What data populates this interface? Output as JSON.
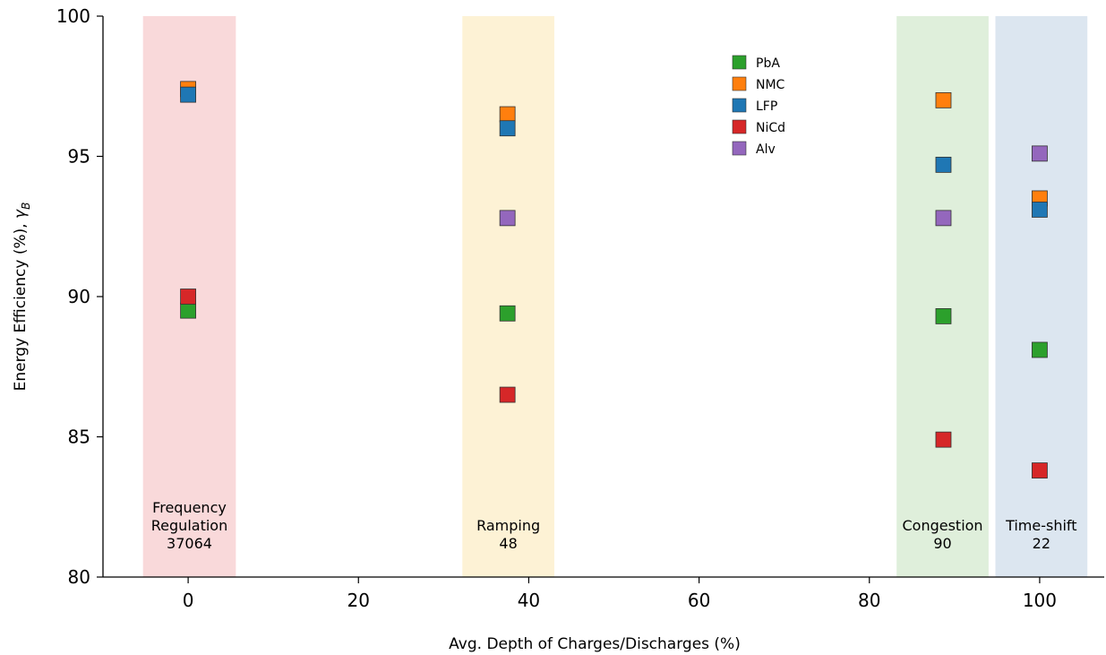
{
  "chart_data": {
    "type": "scatter",
    "xlabel": "Avg. Depth of Charges/Discharges (%)",
    "ylabel": "Energy Efficiency (%), ",
    "ylabel_symbol": "γ",
    "ylabel_subscript": "B",
    "xlim": [
      -10,
      108
    ],
    "ylim": [
      80,
      100
    ],
    "xticks": [
      0,
      20,
      40,
      60,
      80,
      100
    ],
    "yticks": [
      80,
      85,
      90,
      95,
      100
    ],
    "grid": false,
    "legend_position": "top-center",
    "bands": [
      {
        "x_min": -5.3,
        "x_max": 5.6,
        "color": "#f9d9da",
        "label_lines": [
          "Frequency",
          "Regulation",
          "37064"
        ]
      },
      {
        "x_min": 32.2,
        "x_max": 43.0,
        "color": "#fdf2d5",
        "label_lines": [
          "Ramping",
          "48"
        ]
      },
      {
        "x_min": 83.2,
        "x_max": 94.0,
        "color": "#dfefdb",
        "label_lines": [
          "Congestion",
          "90"
        ]
      },
      {
        "x_min": 94.8,
        "x_max": 105.6,
        "color": "#dce6f0",
        "label_lines": [
          "Time-shift",
          "22"
        ]
      }
    ],
    "series": [
      {
        "name": "PbA",
        "color": "#2ca02c",
        "points": [
          [
            0,
            89.5
          ],
          [
            37.5,
            89.4
          ],
          [
            88.7,
            89.3
          ],
          [
            100,
            88.1
          ]
        ]
      },
      {
        "name": "NMC",
        "color": "#ff7f0e",
        "points": [
          [
            0,
            97.4
          ],
          [
            37.5,
            96.5
          ],
          [
            88.7,
            97.0
          ],
          [
            100,
            93.5
          ]
        ]
      },
      {
        "name": "LFP",
        "color": "#1f77b4",
        "points": [
          [
            0,
            97.2
          ],
          [
            37.5,
            96.0
          ],
          [
            88.7,
            94.7
          ],
          [
            100,
            93.1
          ]
        ]
      },
      {
        "name": "NiCd",
        "color": "#d62728",
        "points": [
          [
            0,
            90.0
          ],
          [
            37.5,
            86.5
          ],
          [
            88.7,
            84.9
          ],
          [
            100,
            83.8
          ]
        ]
      },
      {
        "name": "Alv",
        "color": "#9467bd",
        "points": [
          [
            37.5,
            92.8
          ],
          [
            88.7,
            92.8
          ],
          [
            100,
            95.1
          ]
        ]
      }
    ]
  }
}
